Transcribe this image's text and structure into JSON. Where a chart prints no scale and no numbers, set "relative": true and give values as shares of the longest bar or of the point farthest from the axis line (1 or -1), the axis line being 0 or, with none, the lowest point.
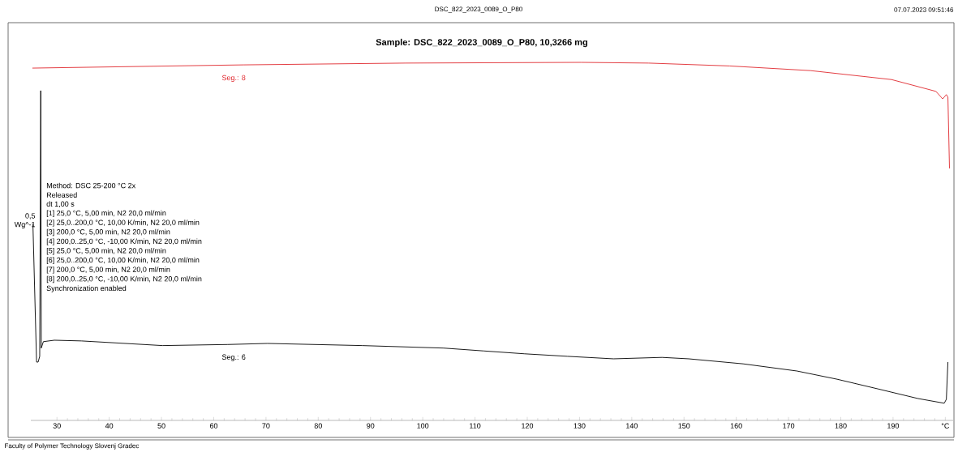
{
  "chart_data": {
    "type": "line",
    "relative": true,
    "title": "Sample: DSC_822_2023_0089_O_P80, 10,3266 mg",
    "subtitle": "DSC_822_2023_0089_O_P80",
    "annotations": [
      "07.07.2023 09:51:46",
      "Faculty of Polymer Technology Slovenj Gradec",
      "0,5",
      "Wg^-1",
      "Method: DSC 25-200 °C 2x",
      "Released",
      "dt 1,00 s",
      "[1] 25,0 °C, 5,00 min, N2 20,0 ml/min",
      "[2] 25,0..200,0 °C, 10,00 K/min, N2 20,0 ml/min",
      "[3] 200,0 °C, 5,00 min, N2 20,0 ml/min",
      "[4] 200,0..25,0 °C, -10,00 K/min, N2 20,0 ml/min",
      "[5] 25,0 °C, 5,00 min, N2 20,0 ml/min",
      "[6] 25,0..200,0 °C, 10,00 K/min, N2 20,0 ml/min",
      "[7] 200,0 °C, 5,00 min, N2 20,0 ml/min",
      "[8] 200,0..25,0 °C, -10,00 K/min, N2 20,0 ml/min",
      "Synchronization enabled"
    ],
    "xlim": [
      25,
      201.5
    ],
    "xticks": [
      30,
      40,
      50,
      60,
      70,
      80,
      90,
      100,
      110,
      120,
      130,
      140,
      150,
      160,
      170,
      180,
      190,
      {
        "value": 200,
        "label": "°C"
      }
    ],
    "series": [
      {
        "name": "Seg.: 8",
        "color": "#e0282e",
        "x": [
          25.3,
          65.7,
          96.7,
          130.3,
          143.2,
          158.7,
          174.2,
          189.7,
          198.2,
          199.5,
          200.2,
          200.5,
          200.8
        ],
        "values": [
          0.984,
          0.993,
          0.998,
          1.0,
          0.998,
          0.99,
          0.977,
          0.952,
          0.919,
          0.898,
          0.91,
          0.903,
          0.704
        ]
      },
      {
        "name": "Seg.: 6",
        "color": "#000000",
        "x": [
          25.4,
          26.1,
          26.4,
          26.7,
          26.9,
          27.0,
          27.4,
          29.5,
          34.7,
          50.2,
          62.6,
          70.3,
          88.4,
          104.0,
          111.7,
          119.5,
          127.7,
          136.5,
          145.8,
          150.9,
          161.3,
          171.6,
          179.3,
          187.1,
          194.8,
          199.8,
          200.2,
          200.5
        ],
        "values": [
          0.548,
          0.163,
          0.163,
          0.179,
          0.921,
          0.202,
          0.22,
          0.224,
          0.222,
          0.209,
          0.212,
          0.215,
          0.209,
          0.202,
          0.194,
          0.186,
          0.179,
          0.172,
          0.176,
          0.172,
          0.158,
          0.138,
          0.115,
          0.088,
          0.061,
          0.048,
          0.059,
          0.163
        ]
      }
    ]
  }
}
